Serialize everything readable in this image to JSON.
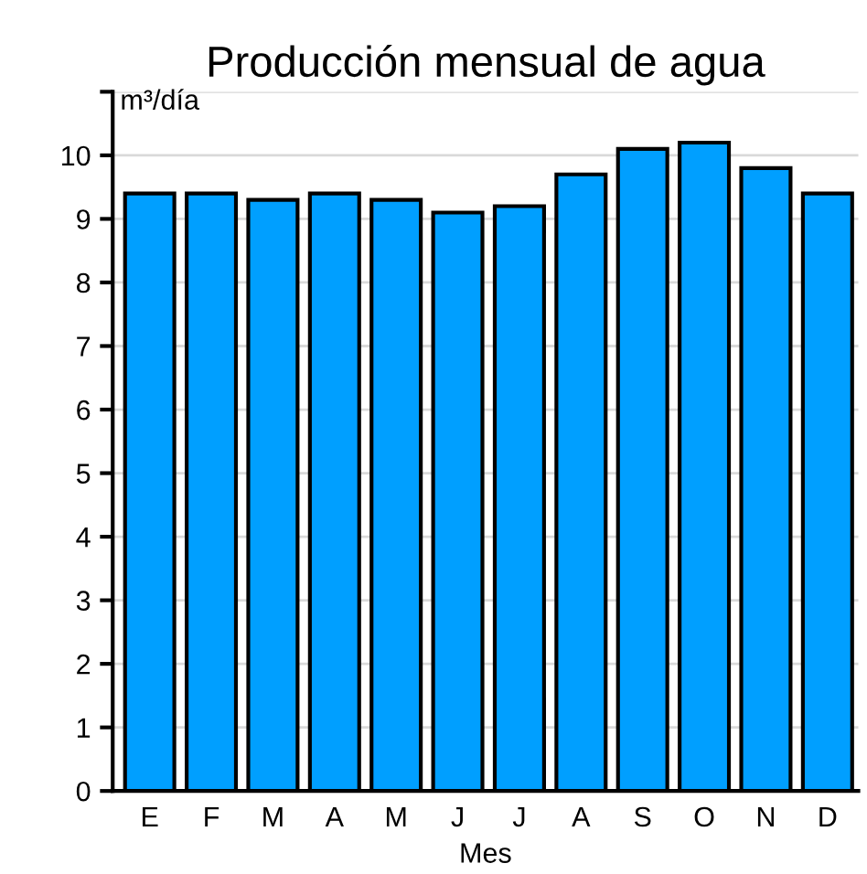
{
  "chart_data": {
    "type": "bar",
    "title": "Producción mensual de agua",
    "xlabel": "Mes",
    "ylabel": "m³/día",
    "categories": [
      "E",
      "F",
      "M",
      "A",
      "M",
      "J",
      "J",
      "A",
      "S",
      "O",
      "N",
      "D"
    ],
    "values": [
      9.4,
      9.4,
      9.3,
      9.4,
      9.3,
      9.1,
      9.2,
      9.7,
      10.1,
      10.2,
      9.8,
      9.4
    ],
    "color": "#009fff",
    "ylim": [
      0,
      11
    ],
    "yticks": [
      0,
      1,
      2,
      3,
      4,
      5,
      6,
      7,
      8,
      9,
      10,
      {
        "value": 11,
        "label": null
      }
    ],
    "grid": "y"
  }
}
